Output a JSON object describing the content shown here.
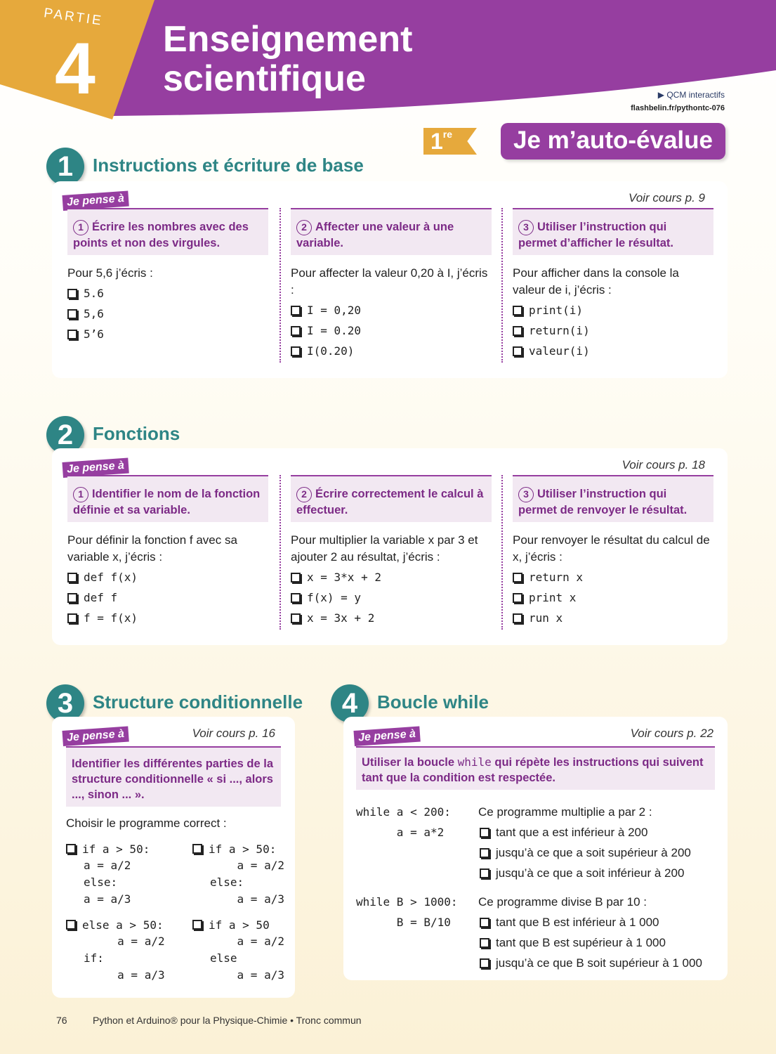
{
  "header": {
    "partie_label": "PARTIE",
    "partie_number": "4",
    "title_line1": "Enseignement",
    "title_line2": "scientifique",
    "qcm_label": "QCM interactifs",
    "qcm_link": "flashbelin.fr/pythontc-076",
    "level_badge": "1",
    "level_sup": "re",
    "autoeval_title": "Je m’auto-évalue"
  },
  "colors": {
    "purple": "#963ea0",
    "teal": "#2e8585",
    "gold": "#e6a93c"
  },
  "tag_label": "Je pense à",
  "sections": [
    {
      "number": "1",
      "title": "Instructions et écriture de base",
      "voir": "Voir cours p. 9",
      "columns": [
        {
          "num": "1",
          "goal": "Écrire les nombres avec des points et non des virgules.",
          "prompt": "Pour 5,6 j’écris :",
          "options": [
            "5.6",
            "5,6",
            "5’6"
          ]
        },
        {
          "num": "2",
          "goal": "Affecter une valeur à une variable.",
          "prompt": "Pour affecter la valeur 0,20 à I, j’écris :",
          "options": [
            "I = 0,20",
            "I = 0.20",
            "I(0.20)"
          ]
        },
        {
          "num": "3",
          "goal": "Utiliser l’instruction qui permet d’afficher le résultat.",
          "prompt": "Pour afficher dans la console la valeur de i, j’écris :",
          "options": [
            "print(i)",
            "return(i)",
            "valeur(i)"
          ]
        }
      ]
    },
    {
      "number": "2",
      "title": "Fonctions",
      "voir": "Voir cours p. 18",
      "columns": [
        {
          "num": "1",
          "goal": "Identifier le nom de la fonction définie et sa variable.",
          "prompt": "Pour définir la fonction f avec sa variable x, j’écris :",
          "options": [
            "def f(x)",
            "def f",
            "f = f(x)"
          ]
        },
        {
          "num": "2",
          "goal": "Écrire correctement le calcul à effectuer.",
          "prompt": "Pour multiplier la variable x par 3 et ajouter 2 au résultat, j’écris :",
          "options": [
            "x = 3*x + 2",
            "f(x) = y",
            "x = 3x + 2"
          ]
        },
        {
          "num": "3",
          "goal": "Utiliser l’instruction qui permet de renvoyer le résultat.",
          "prompt": "Pour renvoyer le résultat du calcul de x, j’écris :",
          "options": [
            "return x",
            "print x",
            "run x"
          ]
        }
      ]
    }
  ],
  "section3": {
    "number": "3",
    "title": "Structure conditionnelle",
    "voir": "Voir cours p. 16",
    "goal": "Identifier les différentes parties de la structure conditionnelle « si ..., alors ..., sinon ... ».",
    "prompt": "Choisir le programme correct :",
    "options": [
      [
        "if a > 50:",
        "a = a/2",
        "else:",
        "a = a/3"
      ],
      [
        "if a > 50:",
        "    a = a/2",
        "else:",
        "    a = a/3"
      ],
      [
        "else a > 50:",
        "     a = a/2",
        "if:",
        "     a = a/3"
      ],
      [
        "if a > 50",
        "    a = a/2",
        "else",
        "    a = a/3"
      ]
    ]
  },
  "section4": {
    "number": "4",
    "title": "Boucle while",
    "voir": "Voir cours p. 22",
    "goal_pre": "Utiliser la boucle ",
    "goal_code": "while",
    "goal_post": " qui répète les instructions qui suivent tant que la condition est respectée.",
    "programs": [
      {
        "code": [
          "while a < 200:",
          "      a = a*2"
        ],
        "prompt": "Ce programme multiplie a par 2 :",
        "options": [
          "tant que a est inférieur à 200",
          "jusqu’à ce que a soit supérieur à 200",
          "jusqu’à ce que a soit inférieur à 200"
        ]
      },
      {
        "code": [
          "while B > 1000:",
          "      B = B/10"
        ],
        "prompt": "Ce programme divise B par 10 :",
        "options": [
          "tant que B est inférieur à 1 000",
          "tant que B est supérieur à 1 000",
          "jusqu’à ce que B soit supérieur à 1 000"
        ]
      }
    ]
  },
  "footer": {
    "page": "76",
    "book": "Python et Arduino® pour la Physique-Chimie • Tronc commun"
  }
}
